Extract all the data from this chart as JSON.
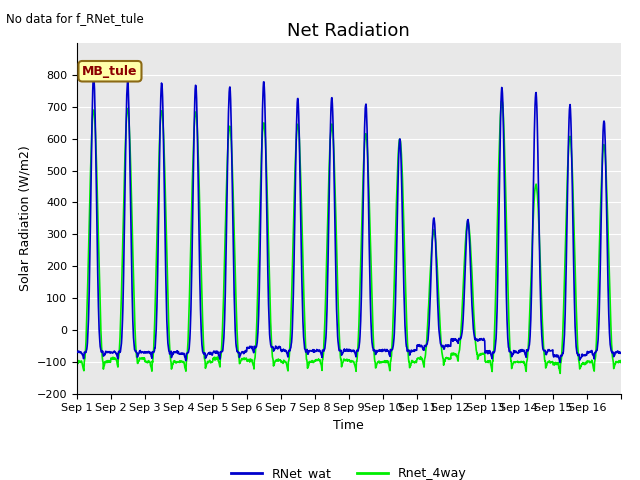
{
  "title": "Net Radiation",
  "upper_left_text": "No data for f_RNet_tule",
  "annotation_text": "MB_tule",
  "ylabel": "Solar Radiation (W/m2)",
  "xlabel": "Time",
  "ylim": [
    -200,
    900
  ],
  "yticks": [
    -200,
    -100,
    0,
    100,
    200,
    300,
    400,
    500,
    600,
    700,
    800
  ],
  "line1_color": "#0000cc",
  "line2_color": "#00ee00",
  "line1_label": "RNet_wat",
  "line2_label": "Rnet_4way",
  "line_width": 1.2,
  "bg_color": "#e8e8e8",
  "fig_bg_color": "#ffffff",
  "title_fontsize": 13,
  "label_fontsize": 9,
  "tick_fontsize": 8,
  "xtick_labels": [
    "Sep 1",
    "Sep 2",
    "Sep 3",
    "Sep 4",
    "Sep 5",
    "Sep 6",
    "Sep 7",
    "Sep 8",
    "Sep 9",
    "Sep 10",
    "Sep 11",
    "Sep 12",
    "Sep 13",
    "Sep 14",
    "Sep 15",
    "Sep 16"
  ],
  "day_peaks_blue": [
    800,
    780,
    775,
    770,
    765,
    780,
    725,
    730,
    710,
    600,
    350,
    345,
    760,
    745,
    705,
    660
  ],
  "day_peaks_green": [
    690,
    695,
    690,
    685,
    640,
    650,
    645,
    645,
    615,
    600,
    310,
    340,
    720,
    455,
    605,
    580
  ],
  "night_val_blue": [
    -70,
    -70,
    -70,
    -75,
    -70,
    -55,
    -65,
    -65,
    -65,
    -65,
    -50,
    -30,
    -70,
    -65,
    -80,
    -70
  ],
  "night_val_green": [
    -100,
    -90,
    -100,
    -100,
    -90,
    -95,
    -100,
    -95,
    -100,
    -100,
    -90,
    -75,
    -100,
    -100,
    -105,
    -100
  ]
}
